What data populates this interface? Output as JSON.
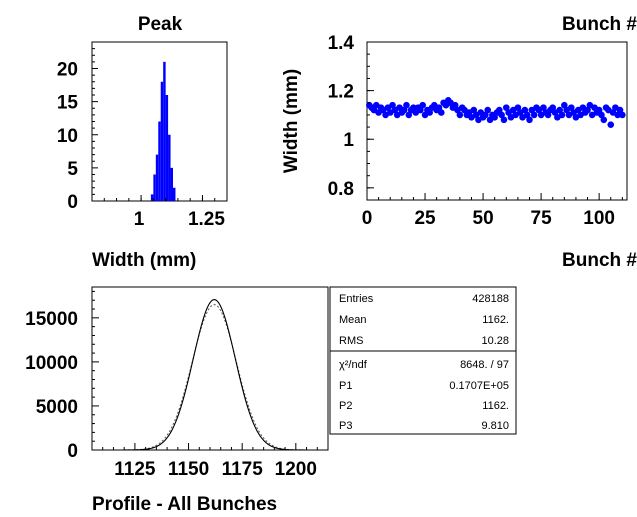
{
  "chart_data": [
    {
      "id": "peak",
      "type": "bar",
      "title": "Peak",
      "xlabel": "Width (mm)",
      "ylabel": "",
      "xlim": [
        0.8,
        1.35
      ],
      "ylim": [
        0,
        24
      ],
      "xticks": [
        "1",
        "1.25"
      ],
      "yticks": [
        "0",
        "5",
        "10",
        "15",
        "20"
      ],
      "x": [
        1.045,
        1.055,
        1.065,
        1.075,
        1.085,
        1.095,
        1.105,
        1.115,
        1.125,
        1.135
      ],
      "values": [
        1,
        4,
        7,
        12,
        18,
        21,
        16,
        10,
        5,
        2
      ],
      "color": "#0000ff"
    },
    {
      "id": "width-vs-bunch",
      "type": "scatter",
      "title": "Bunch #",
      "xlabel": "Bunch #",
      "ylabel": "Width (mm)",
      "xlim": [
        0,
        112
      ],
      "ylim": [
        0.75,
        1.4
      ],
      "xticks": [
        "0",
        "25",
        "50",
        "75",
        "100"
      ],
      "yticks": [
        "0.8",
        "1",
        "1.2",
        "1.4"
      ],
      "x": [
        1,
        2,
        3,
        4,
        5,
        6,
        7,
        8,
        9,
        10,
        11,
        12,
        13,
        14,
        15,
        16,
        17,
        18,
        19,
        20,
        21,
        22,
        23,
        24,
        25,
        26,
        27,
        28,
        29,
        30,
        31,
        32,
        33,
        34,
        35,
        36,
        37,
        38,
        39,
        40,
        41,
        42,
        43,
        44,
        45,
        46,
        47,
        48,
        49,
        50,
        51,
        52,
        53,
        54,
        55,
        56,
        57,
        58,
        59,
        60,
        61,
        62,
        63,
        64,
        65,
        66,
        67,
        68,
        69,
        70,
        71,
        72,
        73,
        74,
        75,
        76,
        77,
        78,
        79,
        80,
        81,
        82,
        83,
        84,
        85,
        86,
        87,
        88,
        89,
        90,
        91,
        92,
        93,
        94,
        95,
        96,
        97,
        98,
        99,
        100,
        101,
        102,
        103,
        104,
        105,
        106,
        107,
        108,
        109,
        110
      ],
      "y": [
        1.14,
        1.13,
        1.12,
        1.14,
        1.11,
        1.13,
        1.12,
        1.1,
        1.13,
        1.11,
        1.14,
        1.12,
        1.1,
        1.13,
        1.11,
        1.12,
        1.14,
        1.1,
        1.12,
        1.13,
        1.11,
        1.13,
        1.12,
        1.14,
        1.1,
        1.12,
        1.11,
        1.13,
        1.14,
        1.12,
        1.13,
        1.11,
        1.15,
        1.14,
        1.16,
        1.15,
        1.13,
        1.14,
        1.12,
        1.1,
        1.13,
        1.12,
        1.1,
        1.11,
        1.09,
        1.12,
        1.1,
        1.08,
        1.11,
        1.09,
        1.1,
        1.12,
        1.08,
        1.1,
        1.09,
        1.11,
        1.12,
        1.1,
        1.08,
        1.13,
        1.11,
        1.09,
        1.12,
        1.1,
        1.13,
        1.11,
        1.09,
        1.12,
        1.1,
        1.08,
        1.12,
        1.1,
        1.13,
        1.12,
        1.1,
        1.13,
        1.11,
        1.1,
        1.12,
        1.13,
        1.11,
        1.09,
        1.12,
        1.1,
        1.14,
        1.12,
        1.1,
        1.13,
        1.11,
        1.09,
        1.12,
        1.1,
        1.13,
        1.11,
        1.12,
        1.14,
        1.1,
        1.13,
        1.11,
        1.12,
        1.1,
        1.08,
        1.13,
        1.12,
        1.06,
        1.11,
        1.13,
        1.1,
        1.12,
        1.1
      ],
      "color": "#0000ff"
    },
    {
      "id": "profile",
      "type": "line",
      "title": "",
      "xlabel": "Profile - All Bunches",
      "ylabel": "",
      "xlim": [
        1105,
        1215
      ],
      "ylim": [
        0,
        18500
      ],
      "xticks": [
        "1125",
        "1150",
        "1175",
        "1200"
      ],
      "yticks": [
        "0",
        "5000",
        "10000",
        "15000"
      ],
      "series": [
        {
          "style": "dotted",
          "mean": 1162,
          "sigma": 10.28,
          "amplitude": 16500
        },
        {
          "style": "solid",
          "mean": 1162,
          "sigma": 9.81,
          "amplitude": 17070
        }
      ],
      "stats": {
        "rows1": [
          {
            "label": "Entries",
            "value": "428188"
          },
          {
            "label": "Mean",
            "value": "1162."
          },
          {
            "label": "RMS",
            "value": "10.28"
          }
        ],
        "chi_label": "χ²/ndf",
        "chi_value": "8648.  /  97",
        "rows2": [
          {
            "label": "P1",
            "value": "0.1707E+05"
          },
          {
            "label": "P2",
            "value": "1162."
          },
          {
            "label": "P3",
            "value": "9.810"
          }
        ]
      }
    }
  ]
}
